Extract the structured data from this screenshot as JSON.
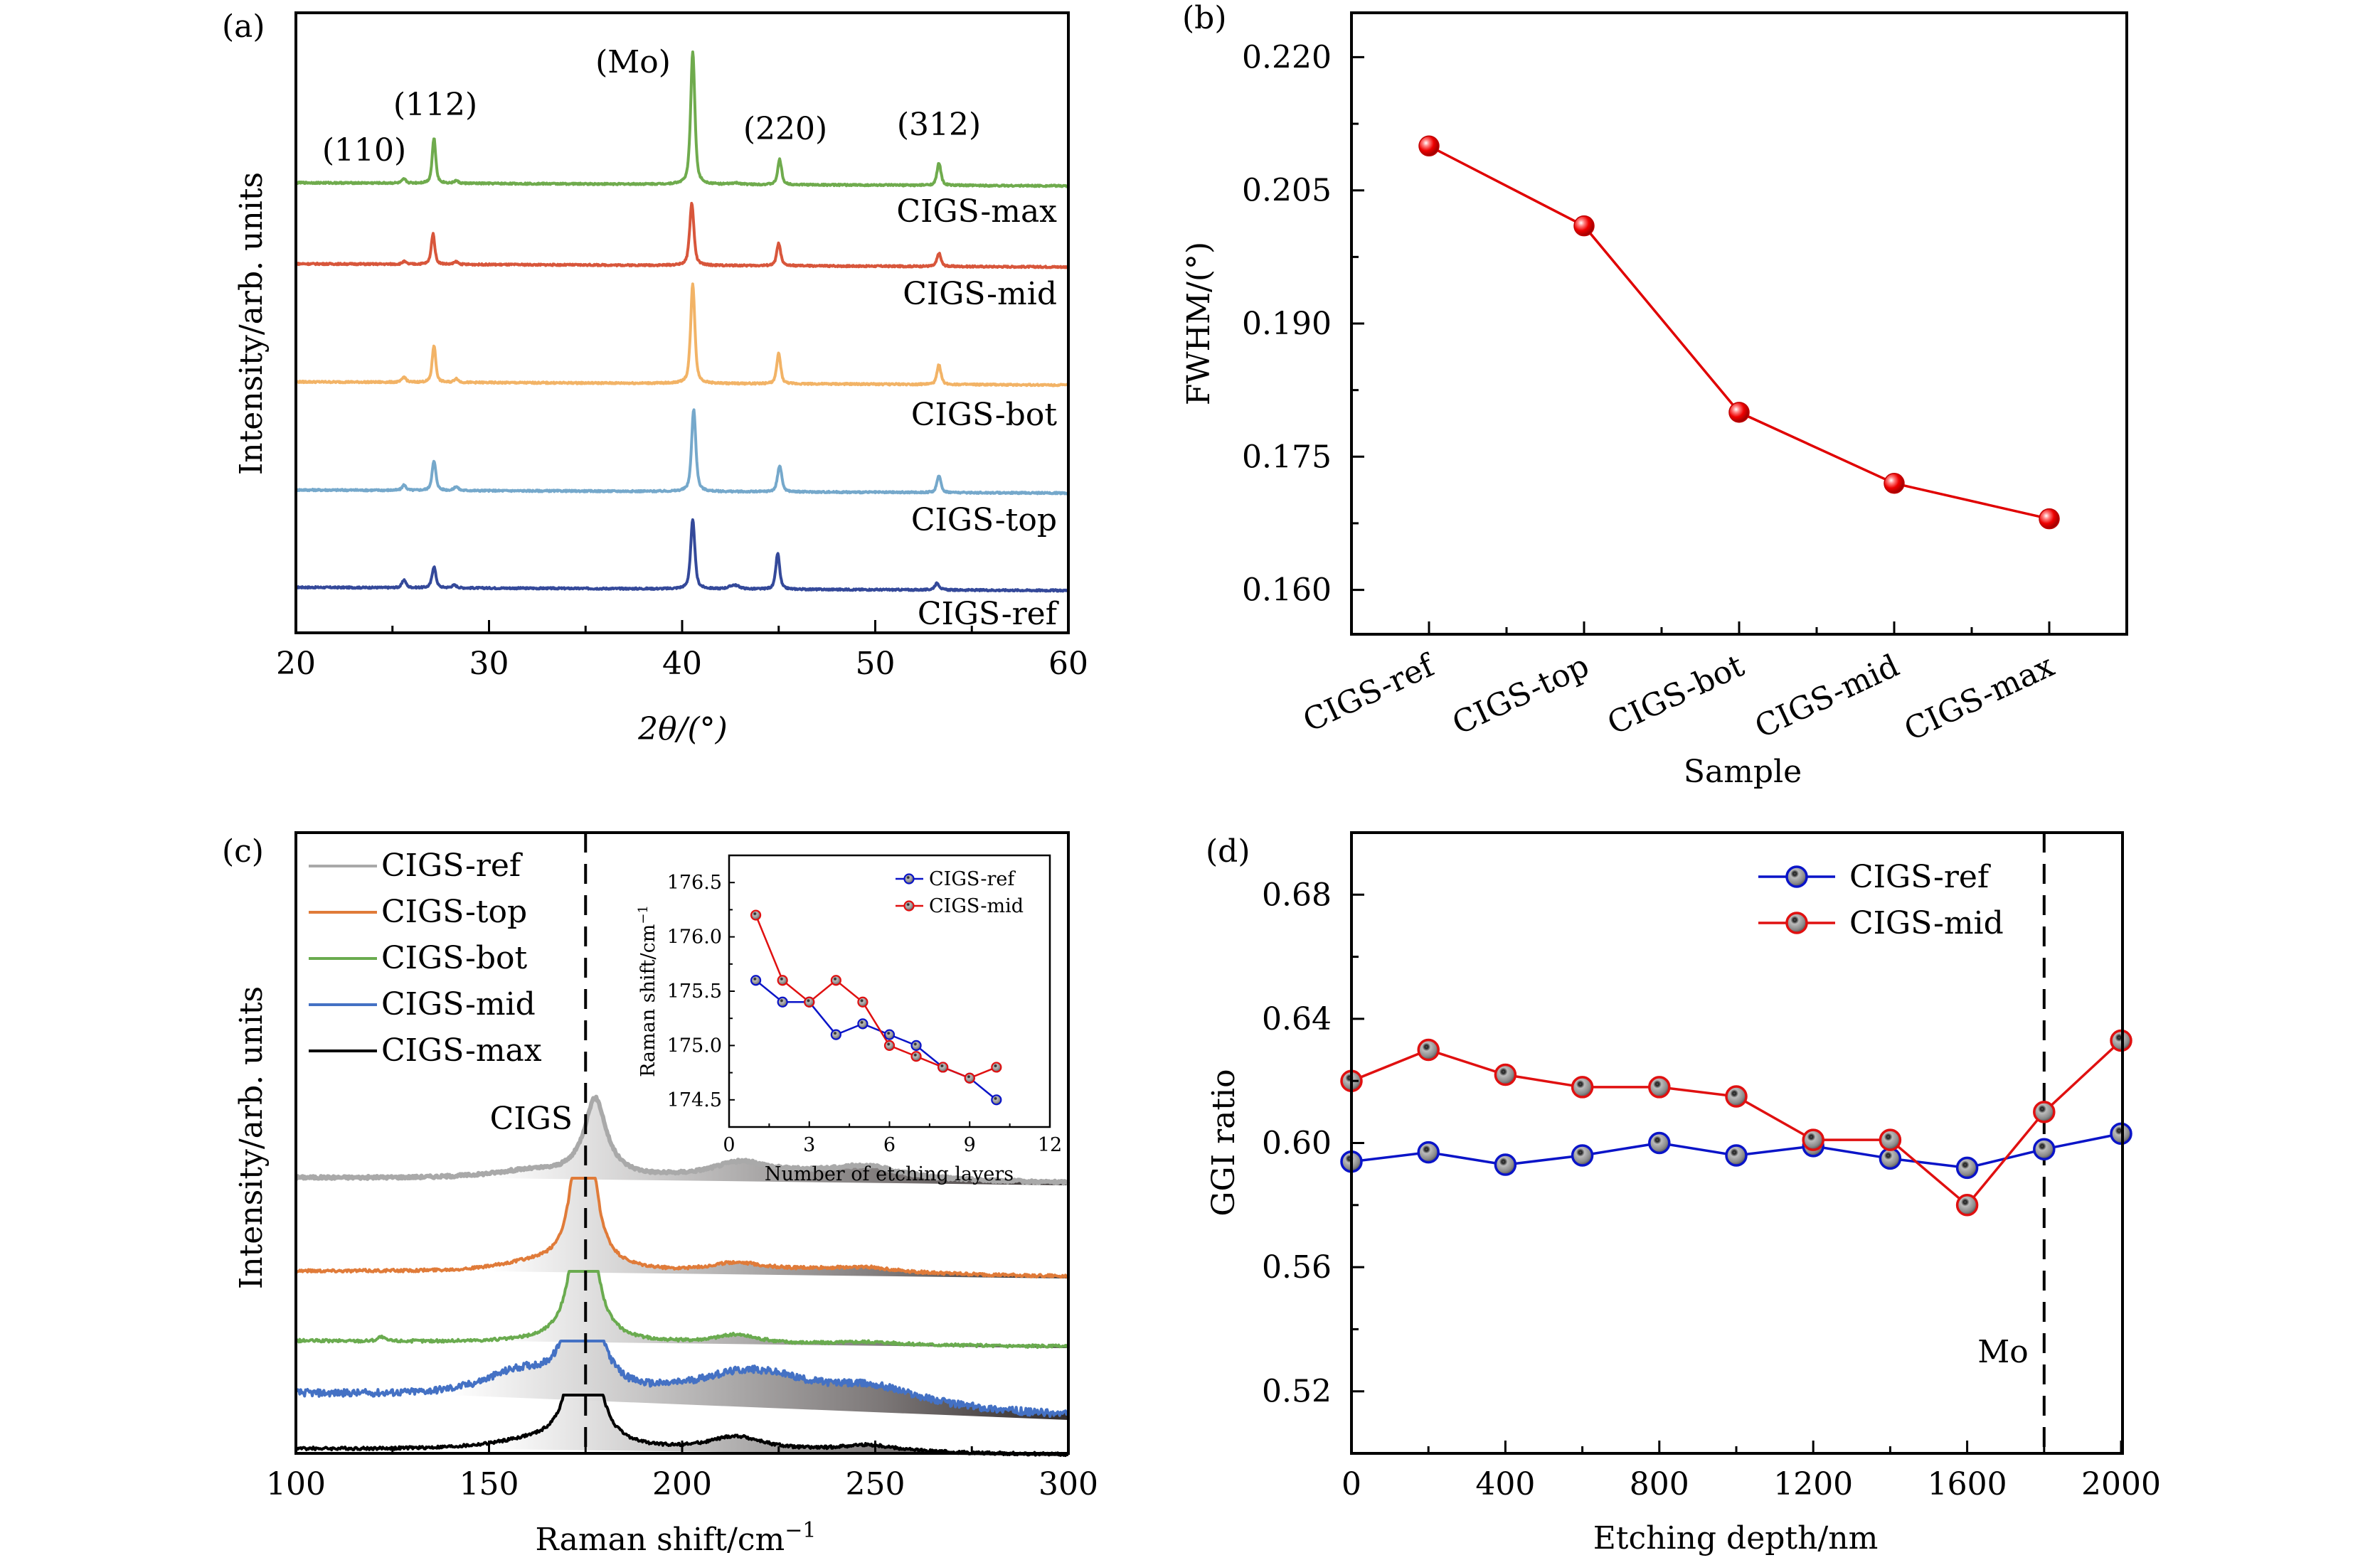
{
  "chart_data": [
    {
      "id": "a",
      "type": "line",
      "panel_label": "(a)",
      "title": "",
      "xlabel": "2θ/(°)",
      "ylabel": "Intensity/arb. units",
      "xlim": [
        20,
        60
      ],
      "xticks": [
        20,
        30,
        40,
        50,
        60
      ],
      "xminor": [
        25,
        35,
        45,
        55
      ],
      "y_ticks_shown": false,
      "peak_annotations": [
        {
          "label": "(110)",
          "x": 25.6
        },
        {
          "label": "(112)",
          "x": 27.1
        },
        {
          "label": "(Mo)",
          "x": 40.5
        },
        {
          "label": "(220)",
          "x": 45.0
        },
        {
          "label": "(312)",
          "x": 53.3
        }
      ],
      "series_note": "Stacked XRD patterns, offset vertically; peaks given as [2θ, relative intensity, width]",
      "series": [
        {
          "name": "CIGS-ref",
          "color": "#34499a",
          "offset": 0.0,
          "peaks": [
            [
              25.6,
              0.06,
              0.12
            ],
            [
              27.15,
              0.16,
              0.12
            ],
            [
              28.2,
              0.02,
              0.15
            ],
            [
              40.55,
              0.52,
              0.13
            ],
            [
              42.7,
              0.03,
              0.3
            ],
            [
              44.95,
              0.27,
              0.12
            ],
            [
              53.2,
              0.05,
              0.15
            ]
          ]
        },
        {
          "name": "CIGS-top",
          "color": "#75a8cb",
          "offset": 1.0,
          "peaks": [
            [
              25.6,
              0.04,
              0.12
            ],
            [
              27.15,
              0.22,
              0.12
            ],
            [
              28.3,
              0.03,
              0.12
            ],
            [
              40.6,
              0.62,
              0.13
            ],
            [
              45.05,
              0.2,
              0.13
            ],
            [
              53.3,
              0.13,
              0.12
            ]
          ]
        },
        {
          "name": "CIGS-bot",
          "color": "#f2b366",
          "offset": 2.3,
          "peaks": [
            [
              25.6,
              0.04,
              0.12
            ],
            [
              27.15,
              0.28,
              0.11
            ],
            [
              28.3,
              0.03,
              0.12
            ],
            [
              40.55,
              0.75,
              0.13
            ],
            [
              45.0,
              0.23,
              0.12
            ],
            [
              53.3,
              0.15,
              0.12
            ]
          ]
        },
        {
          "name": "CIGS-mid",
          "color": "#d8563b",
          "offset": 3.6,
          "peaks": [
            [
              25.6,
              0.02,
              0.12
            ],
            [
              27.1,
              0.23,
              0.11
            ],
            [
              28.3,
              0.02,
              0.12
            ],
            [
              40.5,
              0.47,
              0.13
            ],
            [
              45.0,
              0.17,
              0.12
            ],
            [
              53.3,
              0.1,
              0.12
            ]
          ]
        },
        {
          "name": "CIGS-max",
          "color": "#6fab4d",
          "offset": 4.5,
          "peaks": [
            [
              25.6,
              0.03,
              0.12
            ],
            [
              27.15,
              0.34,
              0.11
            ],
            [
              28.3,
              0.02,
              0.12
            ],
            [
              40.55,
              1.0,
              0.13
            ],
            [
              42.8,
              0.01,
              0.3
            ],
            [
              45.05,
              0.19,
              0.12
            ],
            [
              53.3,
              0.17,
              0.12
            ]
          ]
        }
      ],
      "series_labels": [
        "CIGS-ref",
        "CIGS-top",
        "CIGS-bot",
        "CIGS-mid",
        "CIGS-max"
      ],
      "ylim": [
        -0.8,
        6.0
      ]
    },
    {
      "id": "b",
      "type": "line",
      "panel_label": "(b)",
      "title": "",
      "xlabel": "Sample",
      "ylabel": "FWHM/(°)",
      "categories": [
        "CIGS-ref",
        "CIGS-top",
        "CIGS-bot",
        "CIGS-mid",
        "CIGS-max"
      ],
      "values": [
        0.21,
        0.201,
        0.18,
        0.172,
        0.168
      ],
      "ylim": [
        0.155,
        0.225
      ],
      "yticks": [
        0.16,
        0.175,
        0.19,
        0.205,
        0.22
      ],
      "yticks_text": [
        "0.160",
        "0.175",
        "0.190",
        "0.205",
        "0.220"
      ],
      "color": "#e00000",
      "marker": "sphere"
    },
    {
      "id": "c",
      "type": "area",
      "panel_label": "(c)",
      "title": "",
      "xlabel": "Raman shift/cm",
      "xlabel_sup": "−1",
      "ylabel": "Intensity/arb. units",
      "xlim": [
        100,
        300
      ],
      "xticks": [
        100,
        150,
        200,
        250,
        300
      ],
      "xminor": [
        125,
        175,
        225,
        275
      ],
      "reference_line_x": 175,
      "annotation": "CIGS",
      "legend_position": "top-left",
      "series_note": "Stacked Raman spectra with gradient fill; peaks given as [shift, relative intensity, width]",
      "series": [
        {
          "name": "CIGS-ref",
          "color": "#a9a9a9",
          "offset": 4.0,
          "peaks": [
            [
              177.5,
              0.55,
              3.5
            ],
            [
              160,
              0.05,
              12
            ],
            [
              215,
              0.1,
              9
            ],
            [
              248,
              0.07,
              10
            ],
            [
              235,
              0.05,
              25
            ]
          ]
        },
        {
          "name": "CIGS-top",
          "color": "#e07b39",
          "offset": 2.8,
          "peaks": [
            [
              174.5,
              1.6,
              2.6
            ],
            [
              160,
              0.05,
              10
            ],
            [
              214,
              0.06,
              8
            ],
            [
              248,
              0.03,
              10
            ],
            [
              235,
              0.03,
              25
            ]
          ]
        },
        {
          "name": "CIGS-bot",
          "color": "#6aab4f",
          "offset": 1.85,
          "peaks": [
            [
              174.5,
              1.6,
              2.6
            ],
            [
              122,
              0.03,
              1
            ],
            [
              214,
              0.06,
              7
            ],
            [
              248,
              0.02,
              10
            ]
          ]
        },
        {
          "name": "CIGS-mid",
          "color": "#4471c4",
          "offset": 0.95,
          "peaks": [
            [
              174.5,
              1.5,
              3.0
            ],
            [
              158,
              0.17,
              12
            ],
            [
              218,
              0.24,
              20
            ],
            [
              250,
              0.12,
              15
            ]
          ]
        },
        {
          "name": "CIGS-max",
          "color": "#000000",
          "offset": 0.0,
          "peaks": [
            [
              174.5,
              1.6,
              2.8
            ],
            [
              160,
              0.05,
              12
            ],
            [
              214,
              0.1,
              9
            ],
            [
              248,
              0.05,
              10
            ]
          ]
        }
      ],
      "ylim": [
        -0.4,
        6.0
      ],
      "inset": {
        "type": "line",
        "xlabel": "Number of etching layers",
        "ylabel": "Raman shift/cm",
        "ylabel_sup": "−1",
        "xlim": [
          0,
          12
        ],
        "ylim": [
          174.25,
          176.75
        ],
        "xticks": [
          0,
          3,
          6,
          9,
          12
        ],
        "yticks": [
          174.5,
          175.0,
          175.5,
          176.0,
          176.5
        ],
        "yticks_text": [
          "174.5",
          "175.0",
          "175.5",
          "176.0",
          "176.5"
        ],
        "x": [
          1,
          2,
          3,
          4,
          5,
          6,
          7,
          8,
          9,
          10
        ],
        "series": [
          {
            "name": "CIGS-ref",
            "color": "#0a14c8",
            "values": [
              175.6,
              175.4,
              175.4,
              175.1,
              175.2,
              175.1,
              175.0,
              174.8,
              174.7,
              174.5
            ]
          },
          {
            "name": "CIGS-mid",
            "color": "#e01010",
            "values": [
              176.2,
              175.6,
              175.4,
              175.6,
              175.4,
              175.0,
              174.9,
              174.8,
              174.7,
              174.8
            ]
          }
        ],
        "legend_position": "top-right"
      }
    },
    {
      "id": "d",
      "type": "line",
      "panel_label": "(d)",
      "title": "",
      "xlabel": "Etching depth/nm",
      "ylabel": "GGI ratio",
      "xlim": [
        0,
        2000
      ],
      "xticks": [
        0,
        400,
        800,
        1200,
        1600,
        2000
      ],
      "xminor": [
        200,
        600,
        1000,
        1400,
        1800
      ],
      "ylim": [
        0.5,
        0.7
      ],
      "yticks": [
        0.52,
        0.56,
        0.6,
        0.64,
        0.68
      ],
      "yticks_text": [
        "0.52",
        "0.56",
        "0.60",
        "0.64",
        "0.68"
      ],
      "x": [
        0,
        200,
        400,
        600,
        800,
        1000,
        1200,
        1400,
        1600,
        1800,
        2000
      ],
      "series": [
        {
          "name": "CIGS-ref",
          "color": "#0a14c8",
          "values": [
            0.594,
            0.597,
            0.593,
            0.596,
            0.6,
            0.596,
            0.599,
            0.595,
            0.592,
            0.598,
            0.603
          ]
        },
        {
          "name": "CIGS-mid",
          "color": "#e01010",
          "values": [
            0.62,
            0.63,
            0.622,
            0.618,
            0.618,
            0.615,
            0.601,
            0.601,
            0.58,
            0.61,
            0.633
          ]
        }
      ],
      "reference_line_x": 1800,
      "reference_label": "Mo",
      "legend_position": "top-right"
    }
  ]
}
